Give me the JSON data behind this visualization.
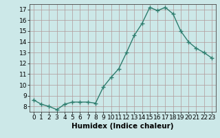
{
  "x": [
    0,
    1,
    2,
    3,
    4,
    5,
    6,
    7,
    8,
    9,
    10,
    11,
    12,
    13,
    14,
    15,
    16,
    17,
    18,
    19,
    20,
    21,
    22,
    23
  ],
  "y": [
    8.6,
    8.2,
    8.0,
    7.7,
    8.2,
    8.4,
    8.4,
    8.4,
    8.3,
    9.8,
    10.7,
    11.5,
    13.0,
    14.6,
    15.7,
    17.2,
    16.9,
    17.2,
    16.6,
    15.0,
    14.0,
    13.4,
    13.0,
    12.5
  ],
  "line_color": "#2e7d6e",
  "marker": "+",
  "marker_size": 4,
  "bg_color": "#cce8e8",
  "grid_color": "#b09898",
  "xlabel": "Humidex (Indice chaleur)",
  "ylim": [
    7.5,
    17.5
  ],
  "xlim": [
    -0.5,
    23.5
  ],
  "yticks": [
    8,
    9,
    10,
    11,
    12,
    13,
    14,
    15,
    16,
    17
  ],
  "xticks": [
    0,
    1,
    2,
    3,
    4,
    5,
    6,
    7,
    8,
    9,
    10,
    11,
    12,
    13,
    14,
    15,
    16,
    17,
    18,
    19,
    20,
    21,
    22,
    23
  ],
  "xtick_labels": [
    "0",
    "1",
    "2",
    "3",
    "4",
    "5",
    "6",
    "7",
    "8",
    "9",
    "10",
    "11",
    "12",
    "13",
    "14",
    "15",
    "16",
    "17",
    "18",
    "19",
    "20",
    "21",
    "22",
    "23"
  ],
  "line_width": 1.0,
  "tick_fontsize": 6.5,
  "xlabel_fontsize": 7.5
}
